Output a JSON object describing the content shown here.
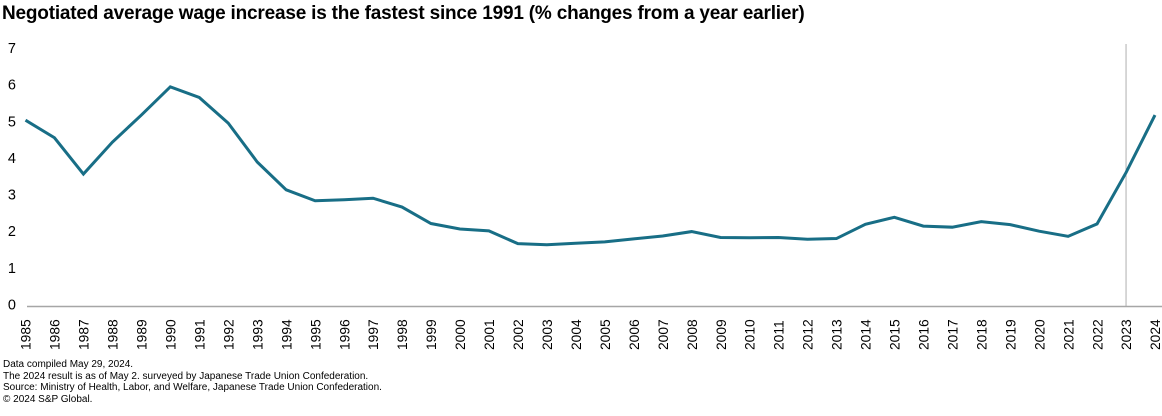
{
  "title": "Negotiated average wage increase is the fastest since 1991 (% changes from a year earlier)",
  "footnotes": [
    "Data compiled May 29, 2024.",
    "The 2024 result is as of May 2. surveyed by Japanese Trade Union Confederation.",
    "Source: Ministry of Health, Labor, and Welfare, Japanese Trade Union Confederation.",
    "© 2024 S&P Global."
  ],
  "chart_data": {
    "type": "line",
    "title": "Negotiated average wage increase is the fastest since 1991 (% changes from a year earlier)",
    "xlabel": "",
    "ylabel": "",
    "x": [
      1985,
      1986,
      1987,
      1988,
      1989,
      1990,
      1991,
      1992,
      1993,
      1994,
      1995,
      1996,
      1997,
      1998,
      1999,
      2000,
      2001,
      2002,
      2003,
      2004,
      2005,
      2006,
      2007,
      2008,
      2009,
      2010,
      2011,
      2012,
      2013,
      2014,
      2015,
      2016,
      2017,
      2018,
      2019,
      2020,
      2021,
      2022,
      2023,
      2024
    ],
    "series": [
      {
        "name": "Negotiated average wage increase (% change from a year earlier)",
        "values": [
          5.03,
          4.55,
          3.56,
          4.43,
          5.17,
          5.94,
          5.65,
          4.95,
          3.89,
          3.13,
          2.83,
          2.86,
          2.9,
          2.66,
          2.21,
          2.06,
          2.01,
          1.66,
          1.63,
          1.67,
          1.71,
          1.79,
          1.87,
          1.99,
          1.83,
          1.82,
          1.83,
          1.78,
          1.8,
          2.19,
          2.38,
          2.14,
          2.11,
          2.26,
          2.18,
          2.0,
          1.86,
          2.2,
          3.6,
          5.17
        ]
      }
    ],
    "ylim": [
      0,
      7
    ],
    "y_ticks": [
      0,
      1,
      2,
      3,
      4,
      5,
      6,
      7
    ],
    "grid": false,
    "legend": false,
    "reference_line_x": 2023,
    "colors": {
      "line": "#186e86",
      "axis": "#a6a6a6",
      "reference_line": "#b0b0b0",
      "tick_text": "#000000"
    }
  }
}
